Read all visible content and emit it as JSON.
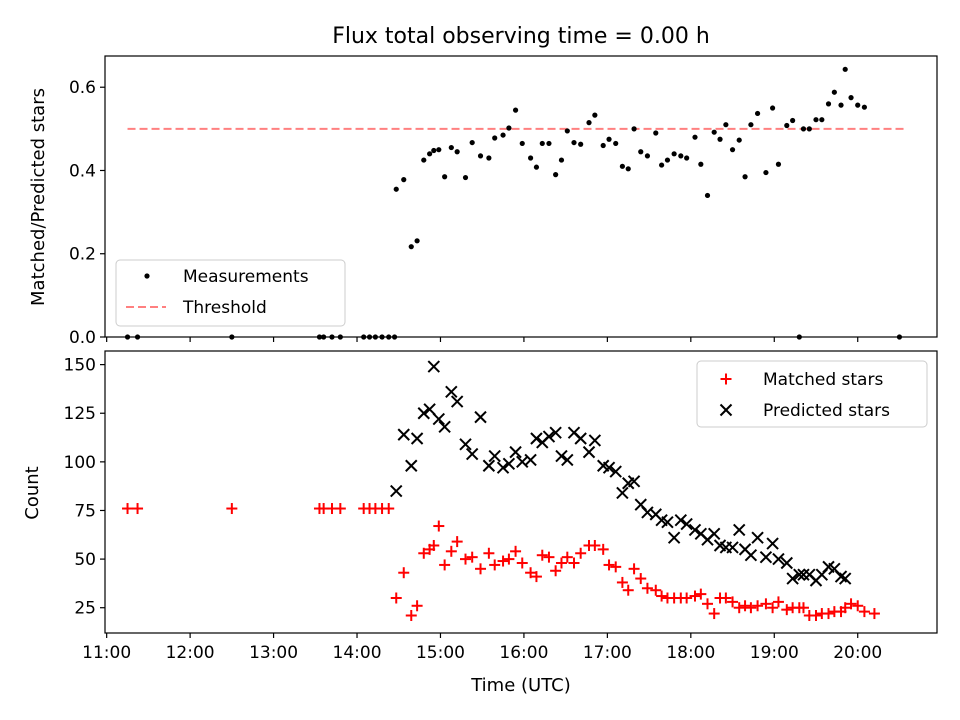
{
  "figure_title": "Flux total observing time = 0.00 h",
  "chart_data": [
    {
      "type": "scatter",
      "ylabel": "Matched/Predicted stars",
      "ylim": [
        0,
        0.675
      ],
      "xlim": [
        10.98,
        20.95
      ],
      "yticks": [
        0.0,
        0.2,
        0.4,
        0.6
      ],
      "ytick_labels": [
        "0.0",
        "0.2",
        "0.4",
        "0.6"
      ],
      "legend": {
        "placement": "lower-left",
        "entries": [
          "Measurements",
          "Threshold"
        ]
      },
      "threshold": {
        "name": "Threshold",
        "value": 0.5,
        "x_range": [
          11.25,
          20.55
        ],
        "color": "#ff8080",
        "style": "dashed"
      },
      "series": [
        {
          "name": "Measurements",
          "color": "#000000",
          "marker": "dot",
          "points": [
            [
              11.25,
              0
            ],
            [
              11.37,
              0
            ],
            [
              12.5,
              0
            ],
            [
              13.55,
              0
            ],
            [
              13.6,
              0
            ],
            [
              13.7,
              0
            ],
            [
              13.8,
              0
            ],
            [
              14.08,
              0
            ],
            [
              14.15,
              0
            ],
            [
              14.22,
              0
            ],
            [
              14.3,
              0
            ],
            [
              14.38,
              0
            ],
            [
              14.45,
              0
            ],
            [
              14.47,
              0.355
            ],
            [
              14.56,
              0.378
            ],
            [
              14.65,
              0.217
            ],
            [
              14.72,
              0.231
            ],
            [
              14.8,
              0.425
            ],
            [
              14.87,
              0.44
            ],
            [
              14.92,
              0.448
            ],
            [
              14.98,
              0.45
            ],
            [
              15.05,
              0.385
            ],
            [
              15.13,
              0.455
            ],
            [
              15.2,
              0.445
            ],
            [
              15.3,
              0.383
            ],
            [
              15.38,
              0.467
            ],
            [
              15.48,
              0.435
            ],
            [
              15.58,
              0.43
            ],
            [
              15.65,
              0.478
            ],
            [
              15.75,
              0.485
            ],
            [
              15.82,
              0.502
            ],
            [
              15.9,
              0.545
            ],
            [
              15.98,
              0.465
            ],
            [
              16.08,
              0.43
            ],
            [
              16.15,
              0.408
            ],
            [
              16.22,
              0.465
            ],
            [
              16.3,
              0.465
            ],
            [
              16.38,
              0.39
            ],
            [
              16.45,
              0.425
            ],
            [
              16.52,
              0.495
            ],
            [
              16.6,
              0.467
            ],
            [
              16.68,
              0.463
            ],
            [
              16.78,
              0.515
            ],
            [
              16.85,
              0.533
            ],
            [
              16.95,
              0.46
            ],
            [
              17.02,
              0.475
            ],
            [
              17.1,
              0.465
            ],
            [
              17.18,
              0.41
            ],
            [
              17.25,
              0.404
            ],
            [
              17.32,
              0.5
            ],
            [
              17.4,
              0.445
            ],
            [
              17.48,
              0.435
            ],
            [
              17.58,
              0.49
            ],
            [
              17.65,
              0.413
            ],
            [
              17.72,
              0.425
            ],
            [
              17.8,
              0.44
            ],
            [
              17.88,
              0.435
            ],
            [
              17.95,
              0.43
            ],
            [
              18.05,
              0.48
            ],
            [
              18.12,
              0.415
            ],
            [
              18.2,
              0.34
            ],
            [
              18.28,
              0.492
            ],
            [
              18.35,
              0.475
            ],
            [
              18.42,
              0.51
            ],
            [
              18.5,
              0.45
            ],
            [
              18.58,
              0.473
            ],
            [
              18.65,
              0.385
            ],
            [
              18.72,
              0.51
            ],
            [
              18.8,
              0.537
            ],
            [
              18.9,
              0.395
            ],
            [
              18.98,
              0.55
            ],
            [
              19.05,
              0.415
            ],
            [
              19.15,
              0.508
            ],
            [
              19.22,
              0.52
            ],
            [
              19.3,
              0
            ],
            [
              19.35,
              0.5
            ],
            [
              19.42,
              0.5
            ],
            [
              19.5,
              0.522
            ],
            [
              19.57,
              0.522
            ],
            [
              19.65,
              0.56
            ],
            [
              19.72,
              0.588
            ],
            [
              19.8,
              0.557
            ],
            [
              19.85,
              0.643
            ],
            [
              19.92,
              0.575
            ],
            [
              20.0,
              0.557
            ],
            [
              20.08,
              0.552
            ],
            [
              20.5,
              0
            ]
          ]
        }
      ]
    },
    {
      "type": "scatter",
      "xlabel": "Time (UTC)",
      "ylabel": "Count",
      "ylim": [
        12,
        157
      ],
      "xlim": [
        10.98,
        20.95
      ],
      "xticks": [
        11,
        12,
        13,
        14,
        15,
        16,
        17,
        18,
        19,
        20
      ],
      "xtick_labels": [
        "11:00",
        "12:00",
        "13:00",
        "14:00",
        "15:00",
        "16:00",
        "17:00",
        "18:00",
        "19:00",
        "20:00"
      ],
      "yticks": [
        25,
        50,
        75,
        100,
        125,
        150
      ],
      "ytick_labels": [
        "25",
        "50",
        "75",
        "100",
        "125",
        "150"
      ],
      "legend": {
        "placement": "top-right",
        "entries": [
          "Matched stars",
          "Predicted stars"
        ]
      },
      "series": [
        {
          "name": "Matched stars",
          "color": "#ff0000",
          "marker": "plus",
          "points": [
            [
              11.25,
              76
            ],
            [
              11.37,
              76
            ],
            [
              12.5,
              76
            ],
            [
              13.55,
              76
            ],
            [
              13.6,
              76
            ],
            [
              13.7,
              76
            ],
            [
              13.8,
              76
            ],
            [
              14.08,
              76
            ],
            [
              14.15,
              76
            ],
            [
              14.22,
              76
            ],
            [
              14.3,
              76
            ],
            [
              14.38,
              76
            ],
            [
              14.47,
              30
            ],
            [
              14.56,
              43
            ],
            [
              14.65,
              21
            ],
            [
              14.72,
              26
            ],
            [
              14.8,
              53
            ],
            [
              14.87,
              55
            ],
            [
              14.92,
              57
            ],
            [
              14.98,
              67
            ],
            [
              15.05,
              47
            ],
            [
              15.13,
              54
            ],
            [
              15.2,
              59
            ],
            [
              15.3,
              50
            ],
            [
              15.38,
              51
            ],
            [
              15.48,
              45
            ],
            [
              15.58,
              53
            ],
            [
              15.65,
              47
            ],
            [
              15.75,
              49
            ],
            [
              15.82,
              50
            ],
            [
              15.9,
              54
            ],
            [
              15.98,
              48
            ],
            [
              16.08,
              43
            ],
            [
              16.15,
              41
            ],
            [
              16.22,
              52
            ],
            [
              16.3,
              51
            ],
            [
              16.38,
              44
            ],
            [
              16.45,
              48
            ],
            [
              16.52,
              51
            ],
            [
              16.6,
              48
            ],
            [
              16.68,
              53
            ],
            [
              16.78,
              57
            ],
            [
              16.85,
              57
            ],
            [
              16.95,
              55
            ],
            [
              17.02,
              47
            ],
            [
              17.1,
              46
            ],
            [
              17.18,
              38
            ],
            [
              17.25,
              34
            ],
            [
              17.32,
              45
            ],
            [
              17.4,
              40
            ],
            [
              17.48,
              35
            ],
            [
              17.58,
              34
            ],
            [
              17.65,
              31
            ],
            [
              17.72,
              30
            ],
            [
              17.8,
              30
            ],
            [
              17.88,
              30
            ],
            [
              17.95,
              30
            ],
            [
              18.05,
              31
            ],
            [
              18.12,
              32
            ],
            [
              18.2,
              27
            ],
            [
              18.28,
              22
            ],
            [
              18.35,
              30
            ],
            [
              18.42,
              30
            ],
            [
              18.5,
              28
            ],
            [
              18.58,
              25
            ],
            [
              18.65,
              26
            ],
            [
              18.72,
              25
            ],
            [
              18.8,
              26
            ],
            [
              18.9,
              27
            ],
            [
              18.98,
              25
            ],
            [
              19.05,
              28
            ],
            [
              19.15,
              24
            ],
            [
              19.22,
              25
            ],
            [
              19.3,
              25
            ],
            [
              19.35,
              25
            ],
            [
              19.42,
              21
            ],
            [
              19.5,
              21
            ],
            [
              19.57,
              22
            ],
            [
              19.65,
              22
            ],
            [
              19.72,
              23
            ],
            [
              19.8,
              23
            ],
            [
              19.85,
              25
            ],
            [
              19.92,
              27
            ],
            [
              20.0,
              26
            ],
            [
              20.08,
              23
            ],
            [
              20.2,
              22
            ]
          ]
        },
        {
          "name": "Predicted stars",
          "color": "#000000",
          "marker": "cross",
          "points": [
            [
              14.47,
              85
            ],
            [
              14.56,
              114
            ],
            [
              14.65,
              98
            ],
            [
              14.72,
              112
            ],
            [
              14.8,
              125
            ],
            [
              14.87,
              127
            ],
            [
              14.92,
              149
            ],
            [
              14.98,
              122
            ],
            [
              15.05,
              118
            ],
            [
              15.13,
              136
            ],
            [
              15.2,
              131
            ],
            [
              15.3,
              109
            ],
            [
              15.38,
              104
            ],
            [
              15.48,
              123
            ],
            [
              15.58,
              98
            ],
            [
              15.65,
              103
            ],
            [
              15.75,
              97
            ],
            [
              15.82,
              99
            ],
            [
              15.9,
              105
            ],
            [
              15.98,
              100
            ],
            [
              16.08,
              101
            ],
            [
              16.15,
              112
            ],
            [
              16.22,
              110
            ],
            [
              16.3,
              113
            ],
            [
              16.38,
              115
            ],
            [
              16.45,
              103
            ],
            [
              16.52,
              101
            ],
            [
              16.6,
              115
            ],
            [
              16.68,
              112
            ],
            [
              16.78,
              105
            ],
            [
              16.85,
              111
            ],
            [
              16.95,
              98
            ],
            [
              17.02,
              97
            ],
            [
              17.1,
              95
            ],
            [
              17.18,
              84
            ],
            [
              17.25,
              89
            ],
            [
              17.32,
              90
            ],
            [
              17.4,
              78
            ],
            [
              17.48,
              74
            ],
            [
              17.58,
              73
            ],
            [
              17.65,
              70
            ],
            [
              17.72,
              69
            ],
            [
              17.8,
              61
            ],
            [
              17.88,
              70
            ],
            [
              17.95,
              68
            ],
            [
              18.05,
              65
            ],
            [
              18.12,
              63
            ],
            [
              18.2,
              60
            ],
            [
              18.28,
              63
            ],
            [
              18.35,
              57
            ],
            [
              18.42,
              56
            ],
            [
              18.5,
              56
            ],
            [
              18.58,
              65
            ],
            [
              18.65,
              55
            ],
            [
              18.72,
              52
            ],
            [
              18.8,
              61
            ],
            [
              18.9,
              51
            ],
            [
              18.98,
              58
            ],
            [
              19.05,
              50
            ],
            [
              19.15,
              48
            ],
            [
              19.22,
              40
            ],
            [
              19.3,
              42
            ],
            [
              19.35,
              42
            ],
            [
              19.42,
              42
            ],
            [
              19.5,
              39
            ],
            [
              19.57,
              42
            ],
            [
              19.65,
              46
            ],
            [
              19.72,
              45
            ],
            [
              19.8,
              41
            ],
            [
              19.85,
              40
            ]
          ]
        }
      ]
    }
  ]
}
